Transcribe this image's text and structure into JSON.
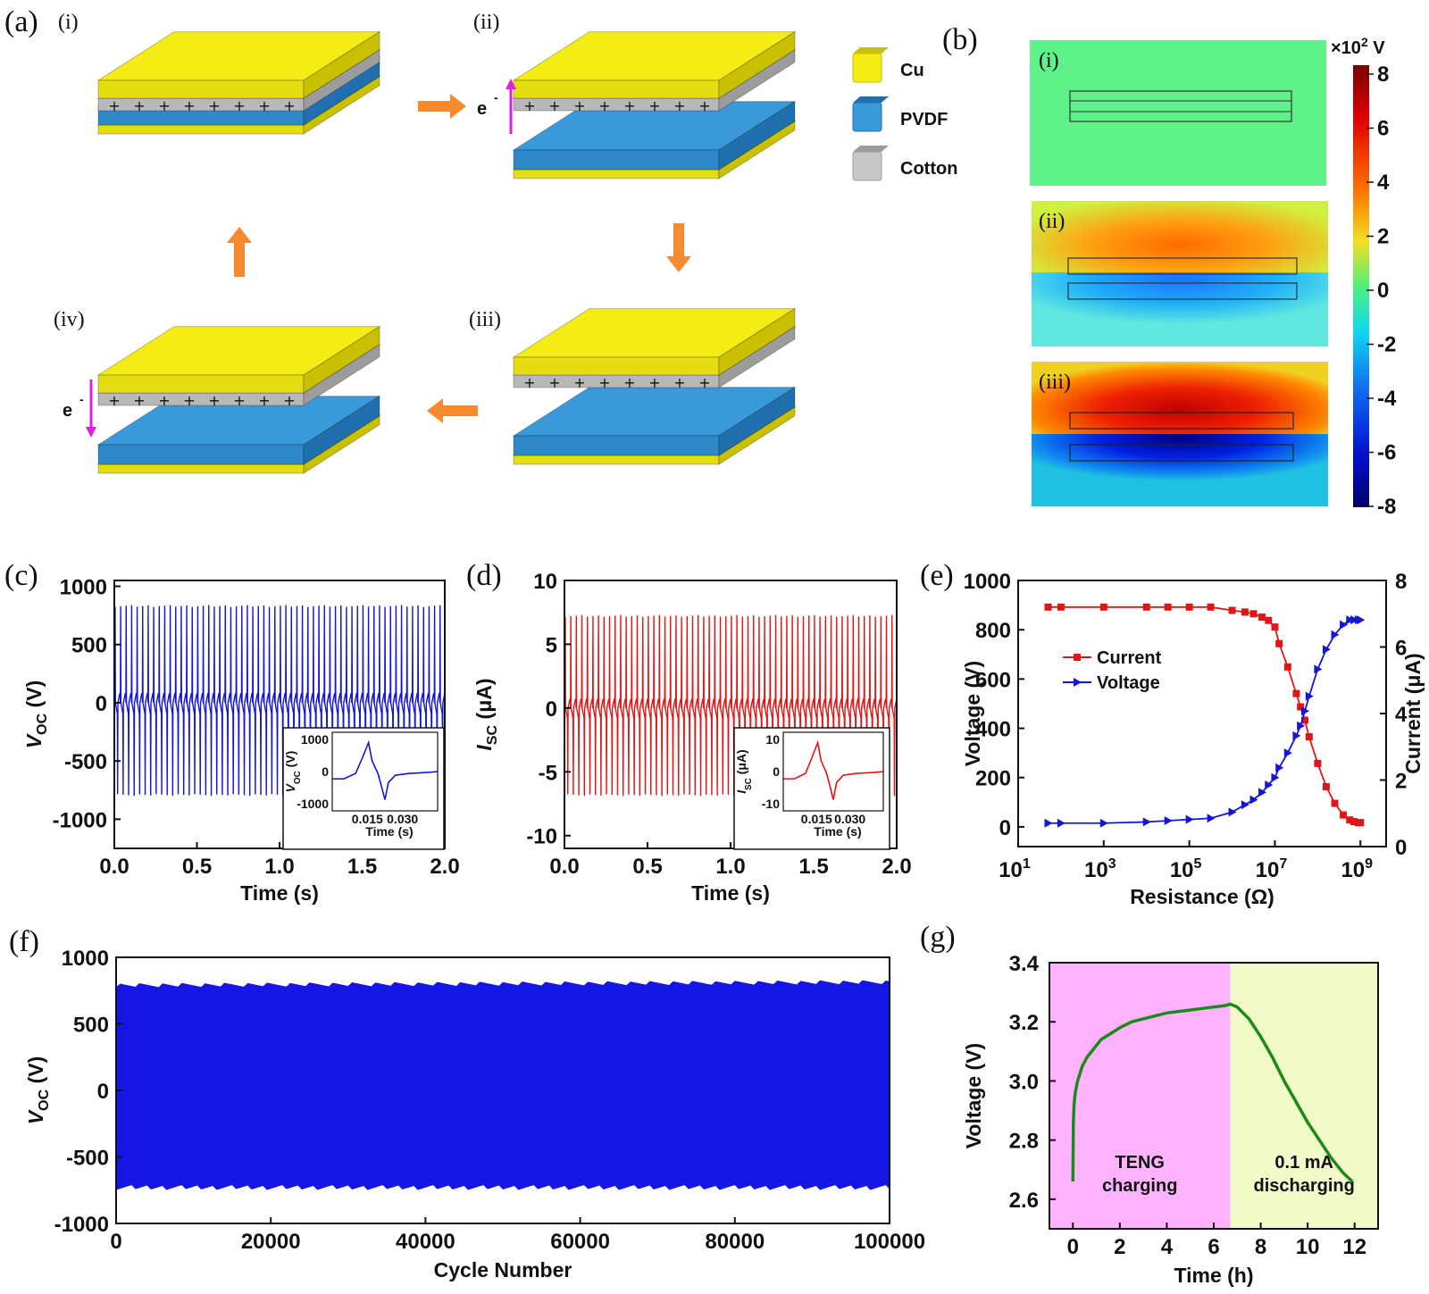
{
  "panels": {
    "a": "(a)",
    "b": "(b)",
    "c": "(c)",
    "d": "(d)",
    "e": "(e)",
    "f": "(f)",
    "g": "(g)"
  },
  "panel_a": {
    "stages": [
      "(i)",
      "(ii)",
      "(iii)",
      "(iv)"
    ],
    "electron_label": "e",
    "electron_sup": "-",
    "legend": [
      "Cu",
      "PVDF",
      "Cotton"
    ],
    "colors": {
      "cu": "#f4ec14",
      "pvdf": "#3a9ad9",
      "cotton": "#c8c8c8",
      "arrow": "#f58a31",
      "electron": "#e020e0"
    }
  },
  "panel_b": {
    "stages": [
      "(i)",
      "(ii)",
      "(iii)"
    ],
    "unit_prefix": "×10",
    "unit_exp": "2",
    "unit_suffix": " V"
  },
  "chart_data": [
    {
      "id": "c",
      "type": "line",
      "ylabel_main": "V",
      "ylabel_sub": "OC",
      "ylabel_unit": " (V)",
      "xlabel": "Time (s)",
      "xlim": [
        0,
        2
      ],
      "ylim": [
        -1250,
        1050
      ],
      "xticks": [
        "0.0",
        "0.5",
        "1.0",
        "1.5",
        "2.0"
      ],
      "yticks": [
        "1000",
        "500",
        "0",
        "-500",
        "-1000"
      ],
      "color": "#1515d6",
      "peak_positive": 840,
      "peak_negative": -800,
      "cycles": 60,
      "inset": {
        "ylabel_main": "V",
        "ylabel_sub": "OC",
        "ylabel_unit": " (V)",
        "xlabel": "Time (s)",
        "xticks": [
          "0.015",
          "0.030"
        ],
        "yticks": [
          "1000",
          "0",
          "-1000"
        ]
      }
    },
    {
      "id": "d",
      "type": "line",
      "ylabel_main": "I",
      "ylabel_sub": "SC",
      "ylabel_unit": " (μA)",
      "xlabel": "Time (s)",
      "xlim": [
        0,
        2
      ],
      "ylim": [
        -11,
        10
      ],
      "xticks": [
        "0.0",
        "0.5",
        "1.0",
        "1.5",
        "2.0"
      ],
      "yticks": [
        "10",
        "5",
        "0",
        "-5",
        "-10"
      ],
      "color": "#e01515",
      "peak_positive": 7.3,
      "peak_negative": -6.9,
      "cycles": 60,
      "inset": {
        "ylabel_main": "I",
        "ylabel_sub": "SC",
        "ylabel_unit": " (μA)",
        "xlabel": "Time (s)",
        "xticks": [
          "0.015",
          "0.030"
        ],
        "yticks": [
          "10",
          "0",
          "-10"
        ]
      }
    },
    {
      "id": "e",
      "type": "line",
      "xlabel": "Resistance (Ω)",
      "ylabel_left": "Voltage (V)",
      "ylabel_right": "Current (μA)",
      "xscale": "log",
      "xlim_log10": [
        1,
        9.6
      ],
      "ylim_left": [
        -80,
        1000
      ],
      "ylim_right": [
        0,
        8
      ],
      "xticks_base": "10",
      "xticks_exp": [
        "1",
        "3",
        "5",
        "7",
        "9"
      ],
      "yticks_left": [
        "0",
        "200",
        "400",
        "600",
        "800",
        "1000"
      ],
      "yticks_right": [
        "0",
        "2",
        "4",
        "6",
        "8"
      ],
      "legend": [
        "Current",
        "Voltage"
      ],
      "series": [
        {
          "name": "Current",
          "axis": "right",
          "color": "#e01515",
          "log10x": [
            1.7,
            2.0,
            3.0,
            4.0,
            4.5,
            5.0,
            5.5,
            6.0,
            6.3,
            6.5,
            6.7,
            6.85,
            7.0,
            7.1,
            7.3,
            7.5,
            7.6,
            7.7,
            7.8,
            8.0,
            8.2,
            8.4,
            8.6,
            8.75,
            8.85,
            8.95,
            9.0
          ],
          "y": [
            7.2,
            7.2,
            7.2,
            7.2,
            7.2,
            7.2,
            7.2,
            7.1,
            7.05,
            7.0,
            6.9,
            6.8,
            6.6,
            6.1,
            5.4,
            4.6,
            4.2,
            3.8,
            3.3,
            2.5,
            1.8,
            1.3,
            0.95,
            0.8,
            0.75,
            0.72,
            0.72
          ]
        },
        {
          "name": "Voltage",
          "axis": "left",
          "color": "#1515d6",
          "log10x": [
            1.7,
            2.0,
            3.0,
            4.0,
            4.5,
            5.0,
            5.5,
            6.0,
            6.3,
            6.5,
            6.7,
            6.85,
            7.0,
            7.1,
            7.3,
            7.5,
            7.6,
            7.7,
            7.8,
            8.0,
            8.2,
            8.4,
            8.6,
            8.75,
            8.85,
            8.95,
            9.0
          ],
          "y": [
            15,
            15,
            15,
            20,
            25,
            30,
            35,
            60,
            90,
            110,
            140,
            170,
            200,
            240,
            300,
            370,
            410,
            470,
            530,
            640,
            720,
            780,
            820,
            840,
            840,
            840,
            840
          ]
        }
      ]
    },
    {
      "id": "f",
      "type": "area",
      "ylabel_main": "V",
      "ylabel_sub": "OC",
      "ylabel_unit": " (V)",
      "xlabel": "Cycle Number",
      "xlim": [
        0,
        100000
      ],
      "ylim": [
        -1000,
        1000
      ],
      "xticks": [
        "0",
        "20000",
        "40000",
        "60000",
        "80000",
        "100000"
      ],
      "yticks": [
        "1000",
        "500",
        "0",
        "-500",
        "-1000"
      ],
      "color": "#1515e6",
      "upper": 790,
      "lower": -730
    },
    {
      "id": "g",
      "type": "line",
      "ylabel": "Voltage (V)",
      "xlabel": "Time (h)",
      "xlim": [
        -1,
        13
      ],
      "ylim": [
        2.5,
        3.4
      ],
      "xticks": [
        "0",
        "2",
        "4",
        "6",
        "8",
        "10",
        "12"
      ],
      "yticks": [
        "3.4",
        "3.2",
        "3.0",
        "2.8",
        "2.6"
      ],
      "color": "#1a8a1a",
      "regions": [
        {
          "label": [
            "TENG",
            "charging"
          ],
          "from": -1,
          "to": 6.7,
          "color": "#ffb3ff"
        },
        {
          "label": [
            "0.1 mA",
            "discharging"
          ],
          "from": 6.7,
          "to": 13,
          "color": "#f2fbc8"
        }
      ],
      "x": [
        0,
        0.02,
        0.05,
        0.1,
        0.2,
        0.4,
        0.6,
        0.9,
        1.2,
        1.6,
        2,
        2.5,
        3,
        3.5,
        4,
        4.5,
        5,
        5.5,
        6,
        6.5,
        6.7,
        7,
        7.5,
        8,
        8.5,
        9,
        9.5,
        10,
        10.5,
        11,
        11.5,
        11.9
      ],
      "y": [
        2.66,
        2.86,
        2.92,
        2.96,
        3.0,
        3.05,
        3.08,
        3.11,
        3.14,
        3.16,
        3.18,
        3.2,
        3.21,
        3.22,
        3.23,
        3.235,
        3.24,
        3.245,
        3.25,
        3.255,
        3.26,
        3.25,
        3.21,
        3.15,
        3.08,
        3.0,
        2.93,
        2.86,
        2.8,
        2.74,
        2.69,
        2.66
      ]
    }
  ]
}
